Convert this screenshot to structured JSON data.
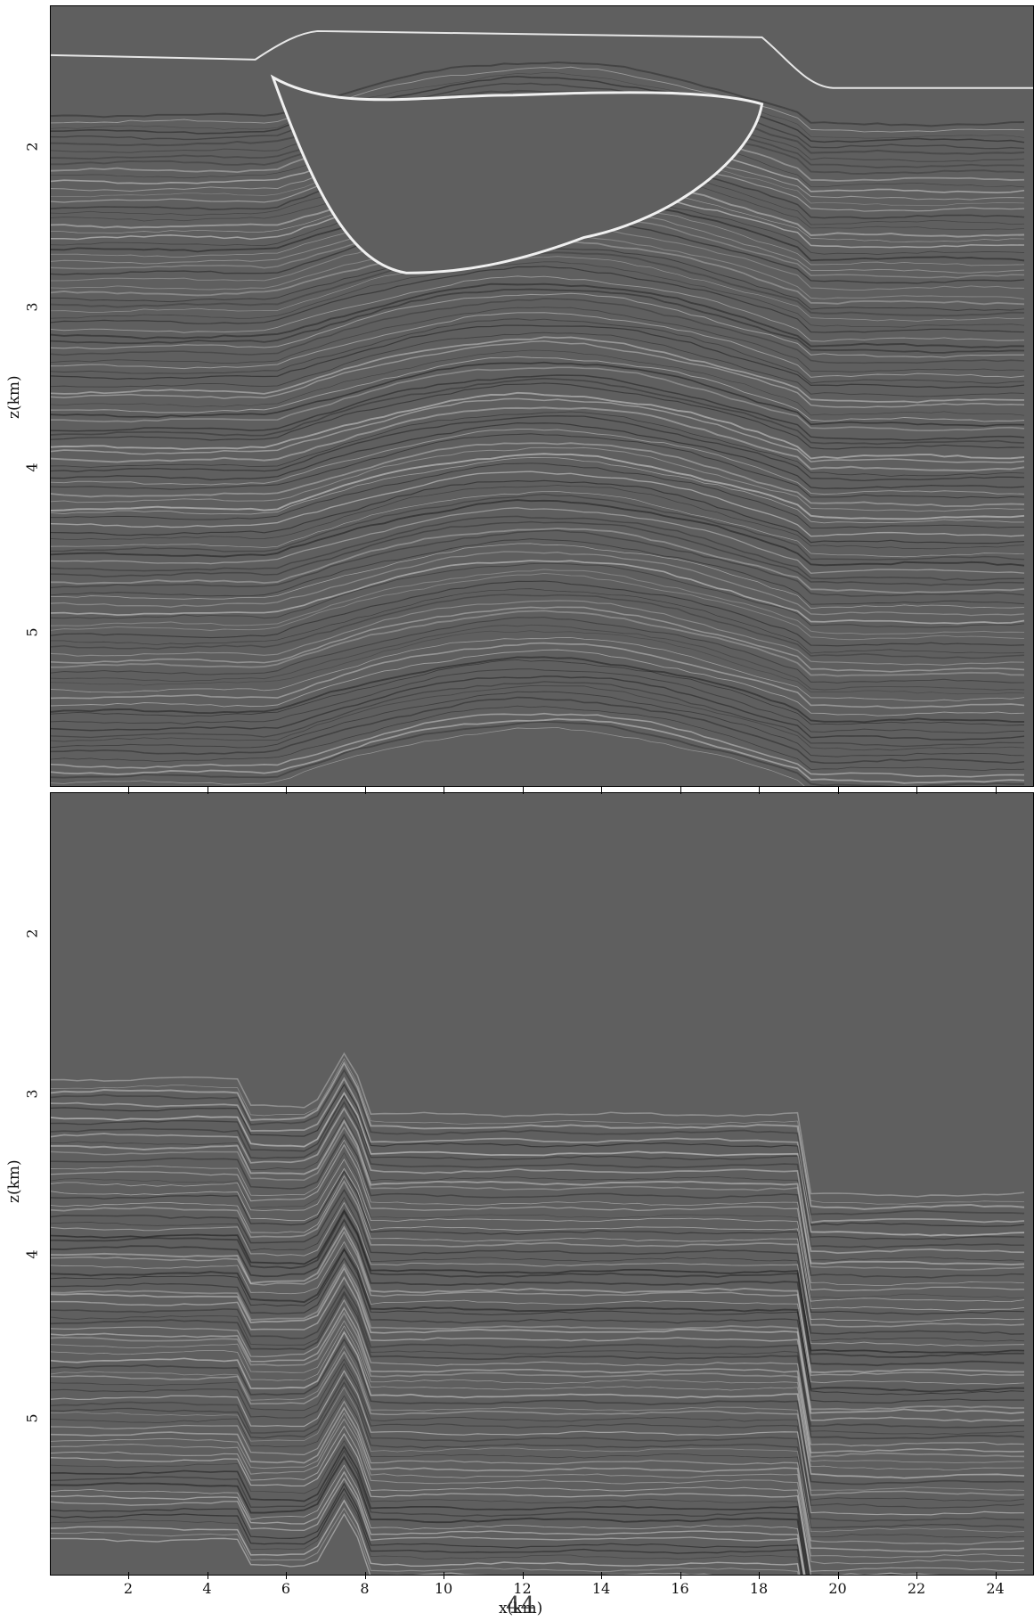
{
  "figure": {
    "page_number": "44",
    "xlabel": "x(km)",
    "panels": [
      {
        "id": "top",
        "ylabel": "z(km)",
        "yticks": [
          "2",
          "3",
          "4",
          "5"
        ]
      },
      {
        "id": "bottom",
        "ylabel": "z(km)",
        "yticks": [
          "2",
          "3",
          "4",
          "5"
        ]
      }
    ],
    "xticks": [
      "2",
      "4",
      "6",
      "8",
      "10",
      "12",
      "14",
      "16",
      "18",
      "20",
      "22",
      "24"
    ],
    "colors": {
      "background": "#5f5f5f",
      "axis": "#000000"
    }
  }
}
